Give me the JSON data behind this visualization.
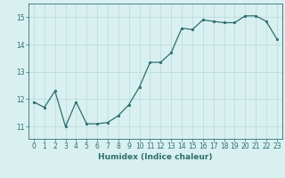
{
  "x": [
    0,
    1,
    2,
    3,
    4,
    5,
    6,
    7,
    8,
    9,
    10,
    11,
    12,
    13,
    14,
    15,
    16,
    17,
    18,
    19,
    20,
    21,
    22,
    23
  ],
  "y": [
    11.9,
    11.7,
    12.3,
    11.0,
    11.9,
    11.1,
    11.1,
    11.15,
    11.4,
    11.8,
    12.45,
    13.35,
    13.35,
    13.7,
    14.6,
    14.55,
    14.9,
    14.85,
    14.8,
    14.8,
    15.05,
    15.05,
    14.85,
    14.2
  ],
  "line_color": "#2d6e6e",
  "marker": "o",
  "markersize": 1.8,
  "linewidth": 0.9,
  "bg_color": "#d9f0f0",
  "grid_color": "#b8d8d8",
  "xlabel": "Humidex (Indice chaleur)",
  "xlabel_fontsize": 6.5,
  "xticks": [
    0,
    1,
    2,
    3,
    4,
    5,
    6,
    7,
    8,
    9,
    10,
    11,
    12,
    13,
    14,
    15,
    16,
    17,
    18,
    19,
    20,
    21,
    22,
    23
  ],
  "yticks": [
    11,
    12,
    13,
    14,
    15
  ],
  "ylim": [
    10.55,
    15.5
  ],
  "xlim": [
    -0.5,
    23.5
  ],
  "tick_fontsize": 5.5,
  "tick_color": "#2d6e6e",
  "spine_color": "#2d6e6e"
}
